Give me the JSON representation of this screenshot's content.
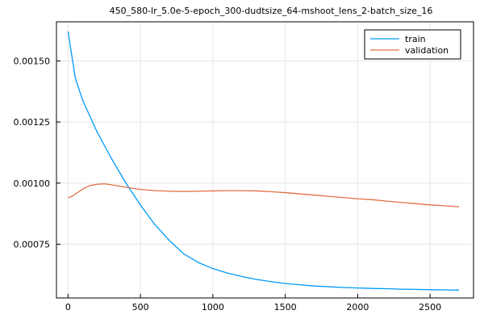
{
  "chart_data": {
    "type": "line",
    "title": "450_580-lr_5.0e-5-epoch_300-dudtsize_64-mshoot_lens_2-batch_size_16",
    "xlabel": "",
    "ylabel": "",
    "xlim": [
      -80,
      2800
    ],
    "ylim": [
      0.00053,
      0.00166
    ],
    "xticks": [
      0,
      500,
      1000,
      1500,
      2000,
      2500
    ],
    "xtick_labels": [
      "0",
      "500",
      "1000",
      "1500",
      "2000",
      "2500"
    ],
    "yticks": [
      0.00075,
      0.001,
      0.00125,
      0.0015
    ],
    "ytick_labels": [
      "0.00075",
      "0.00100",
      "0.00125",
      "0.00150"
    ],
    "grid": true,
    "legend_position": "top-right",
    "series": [
      {
        "name": "train",
        "color": "#009af9",
        "x": [
          0,
          50,
          100,
          200,
          300,
          400,
          500,
          600,
          700,
          800,
          900,
          1000,
          1100,
          1200,
          1300,
          1400,
          1500,
          1600,
          1700,
          1800,
          1900,
          2000,
          2100,
          2200,
          2300,
          2400,
          2500,
          2600,
          2700
        ],
        "y": [
          0.00162,
          0.00143,
          0.00134,
          0.00121,
          0.0011,
          0.001,
          0.00091,
          0.00083,
          0.000765,
          0.00071,
          0.000675,
          0.00065,
          0.000632,
          0.000618,
          0.000606,
          0.000597,
          0.000589,
          0.000584,
          0.000579,
          0.000576,
          0.000573,
          0.000571,
          0.000569,
          0.000568,
          0.000566,
          0.000565,
          0.000564,
          0.000563,
          0.000562
        ]
      },
      {
        "name": "validation",
        "color": "#e26f46",
        "x": [
          0,
          25,
          50,
          100,
          150,
          200,
          250,
          300,
          350,
          400,
          450,
          500,
          600,
          700,
          800,
          900,
          1000,
          1100,
          1200,
          1300,
          1400,
          1500,
          1600,
          1700,
          1800,
          1900,
          2000,
          2100,
          2200,
          2300,
          2400,
          2500,
          2600,
          2700
        ],
        "y": [
          0.00094,
          0.000945,
          0.000955,
          0.000975,
          0.00099,
          0.000995,
          0.000997,
          0.000993,
          0.000988,
          0.000983,
          0.000978,
          0.000974,
          0.000969,
          0.000967,
          0.000966,
          0.000967,
          0.000968,
          0.000969,
          0.000969,
          0.000968,
          0.000965,
          0.000961,
          0.000956,
          0.000951,
          0.000946,
          0.000941,
          0.000936,
          0.000932,
          0.000926,
          0.000921,
          0.000916,
          0.000911,
          0.000907,
          0.000903
        ]
      }
    ]
  }
}
